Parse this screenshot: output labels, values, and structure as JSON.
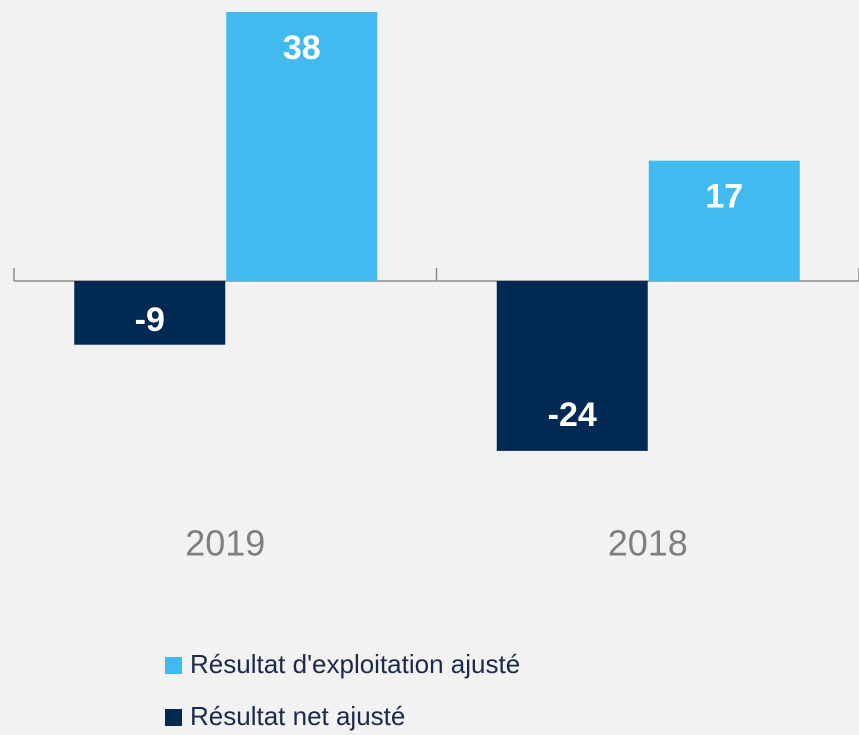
{
  "chart_data": {
    "type": "bar",
    "categories": [
      "2019",
      "2018"
    ],
    "series": [
      {
        "name": "Résultat d'exploitation ajusté",
        "color": "#41bbef",
        "values": [
          38,
          17
        ]
      },
      {
        "name": "Résultat net ajusté",
        "color": "#002a54",
        "values": [
          -9,
          -24
        ]
      }
    ],
    "legend": "bottom"
  }
}
